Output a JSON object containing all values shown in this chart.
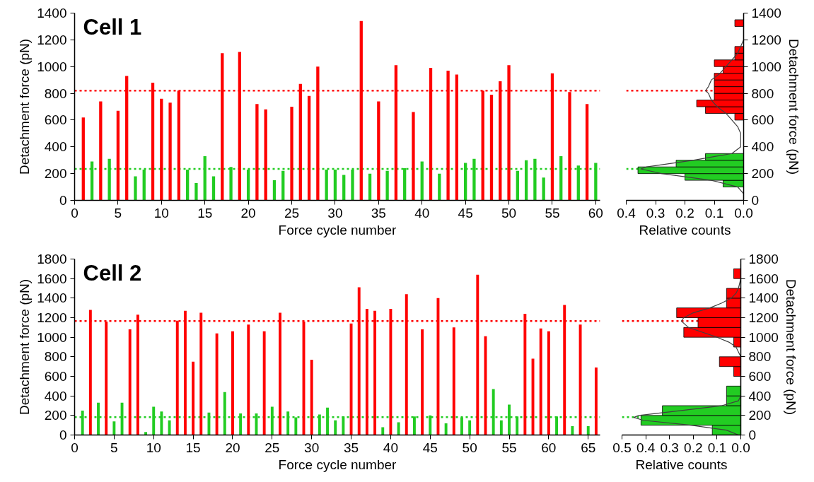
{
  "chart_data": [
    {
      "type": "bar",
      "title": "Cell 1",
      "xlabel": "Force cycle number",
      "ylabel": "Detachment force (pN)",
      "xlim": [
        0,
        60.5
      ],
      "xticks": [
        0,
        5,
        10,
        15,
        20,
        25,
        30,
        35,
        40,
        45,
        50,
        55,
        60
      ],
      "ylim": [
        0,
        1400
      ],
      "yticks": [
        0,
        200,
        400,
        600,
        800,
        1000,
        1200,
        1400
      ],
      "ref_lines": [
        {
          "axis": "y",
          "value": 820,
          "color": "#ff0000",
          "line_style": "dotted"
        },
        {
          "axis": "y",
          "value": 235,
          "color": "#22cc22",
          "line_style": "dotted"
        }
      ],
      "x": [
        1,
        2,
        3,
        4,
        5,
        6,
        7,
        8,
        9,
        10,
        11,
        12,
        13,
        14,
        15,
        16,
        17,
        18,
        19,
        20,
        21,
        22,
        23,
        24,
        25,
        26,
        27,
        28,
        29,
        30,
        31,
        32,
        33,
        34,
        35,
        36,
        37,
        38,
        39,
        40,
        41,
        42,
        43,
        44,
        45,
        46,
        47,
        48,
        49,
        50,
        51,
        52,
        53,
        54,
        55,
        56,
        57,
        58,
        59,
        60
      ],
      "series": [
        {
          "color": "#ff0000",
          "values": [
            620,
            null,
            740,
            null,
            670,
            930,
            null,
            null,
            880,
            760,
            730,
            820,
            null,
            null,
            null,
            null,
            1100,
            null,
            1110,
            null,
            720,
            680,
            null,
            null,
            700,
            870,
            780,
            1000,
            null,
            null,
            null,
            null,
            1340,
            null,
            740,
            null,
            1010,
            null,
            660,
            null,
            990,
            null,
            970,
            940,
            null,
            null,
            820,
            790,
            890,
            1010,
            null,
            null,
            null,
            null,
            950,
            null,
            810,
            null,
            720,
            null
          ]
        },
        {
          "color": "#22cc22",
          "values": [
            null,
            290,
            null,
            310,
            null,
            null,
            180,
            230,
            null,
            null,
            null,
            null,
            230,
            130,
            330,
            180,
            null,
            250,
            null,
            230,
            null,
            null,
            150,
            220,
            null,
            null,
            null,
            null,
            230,
            230,
            190,
            230,
            null,
            200,
            null,
            220,
            null,
            240,
            null,
            290,
            null,
            200,
            null,
            null,
            280,
            310,
            null,
            null,
            null,
            null,
            220,
            300,
            310,
            170,
            null,
            330,
            null,
            260,
            null,
            280
          ]
        }
      ]
    },
    {
      "type": "histogram",
      "orientation": "horizontal",
      "xlabel": "Relative counts",
      "ylabel": "Detachment force (pN)",
      "xlim": [
        0.4,
        0
      ],
      "xticks": [
        0.4,
        0.3,
        0.2,
        0.1,
        {
          "value": 0,
          "label": "0.0"
        }
      ],
      "ylim": [
        0,
        1400
      ],
      "yticks": [
        0,
        200,
        400,
        600,
        800,
        1000,
        1200,
        1400
      ],
      "ref_lines": [
        {
          "axis": "y",
          "value": 820,
          "color": "#ff0000",
          "line_style": "dotted"
        },
        {
          "axis": "y",
          "value": 235,
          "color": "#22cc22",
          "line_style": "dotted"
        }
      ],
      "series": [
        {
          "color": "#ff0000",
          "bins": [
            600,
            650,
            700,
            750,
            800,
            850,
            900,
            950,
            1000,
            1050,
            1100,
            1150,
            1200,
            1250,
            1300,
            1350
          ],
          "values": [
            0.03,
            0.13,
            0.16,
            0.1,
            0.1,
            0.1,
            0.1,
            0.07,
            0.1,
            0.03,
            0.03,
            0,
            0,
            0,
            0.03
          ]
        },
        {
          "color": "#22cc22",
          "bins": [
            100,
            150,
            200,
            250,
            300,
            350
          ],
          "values": [
            0.07,
            0.2,
            0.36,
            0.23,
            0.13
          ]
        },
        {
          "type": "line",
          "color": "#404040",
          "x": [
            0,
            50,
            100,
            150,
            200,
            235,
            250,
            300,
            350,
            400,
            450,
            500,
            550,
            600,
            650,
            700,
            750,
            800,
            820,
            850,
            900,
            950,
            1000,
            1050,
            1100,
            1150,
            1200,
            1300
          ],
          "values": [
            0,
            0,
            0.02,
            0.11,
            0.28,
            0.35,
            0.33,
            0.17,
            0.04,
            0.01,
            0.01,
            0.01,
            0.02,
            0.04,
            0.06,
            0.09,
            0.11,
            0.12,
            0.13,
            0.12,
            0.11,
            0.08,
            0.06,
            0.04,
            0.02,
            0.01,
            0,
            0
          ]
        }
      ]
    },
    {
      "type": "bar",
      "title": "Cell 2",
      "xlabel": "Force cycle number",
      "ylabel": "Detachment force (pN)",
      "xlim": [
        0,
        66.5
      ],
      "xticks": [
        0,
        5,
        10,
        15,
        20,
        25,
        30,
        35,
        40,
        45,
        50,
        55,
        60,
        65
      ],
      "ylim": [
        0,
        1800
      ],
      "yticks": [
        0,
        200,
        400,
        600,
        800,
        1000,
        1200,
        1400,
        1600,
        1800
      ],
      "ref_lines": [
        {
          "axis": "y",
          "value": 1165,
          "color": "#ff0000",
          "line_style": "dotted"
        },
        {
          "axis": "y",
          "value": 182,
          "color": "#22cc22",
          "line_style": "dotted"
        }
      ],
      "x": [
        1,
        2,
        3,
        4,
        5,
        6,
        7,
        8,
        9,
        10,
        11,
        12,
        13,
        14,
        15,
        16,
        17,
        18,
        19,
        20,
        21,
        22,
        23,
        24,
        25,
        26,
        27,
        28,
        29,
        30,
        31,
        32,
        33,
        34,
        35,
        36,
        37,
        38,
        39,
        40,
        41,
        42,
        43,
        44,
        45,
        46,
        47,
        48,
        49,
        50,
        51,
        52,
        53,
        54,
        55,
        56,
        57,
        58,
        59,
        60,
        61,
        62,
        63,
        64,
        65,
        66
      ],
      "series": [
        {
          "color": "#ff0000",
          "values": [
            null,
            1280,
            null,
            1160,
            null,
            null,
            1080,
            1230,
            null,
            null,
            null,
            null,
            1170,
            1270,
            750,
            1250,
            null,
            1040,
            null,
            1060,
            null,
            1130,
            null,
            1060,
            null,
            1250,
            null,
            null,
            1160,
            770,
            null,
            null,
            null,
            null,
            1140,
            1510,
            1290,
            1270,
            null,
            1290,
            null,
            1440,
            null,
            1080,
            null,
            1400,
            null,
            1100,
            null,
            null,
            1640,
            1010,
            null,
            null,
            null,
            null,
            1240,
            780,
            1090,
            1060,
            null,
            1330,
            null,
            1130,
            null,
            690
          ]
        },
        {
          "color": "#22cc22",
          "values": [
            250,
            null,
            330,
            null,
            140,
            330,
            null,
            null,
            30,
            290,
            240,
            150,
            null,
            null,
            null,
            null,
            230,
            null,
            440,
            null,
            220,
            null,
            220,
            null,
            290,
            null,
            240,
            180,
            null,
            null,
            210,
            280,
            150,
            190,
            null,
            null,
            null,
            null,
            80,
            null,
            130,
            null,
            190,
            null,
            200,
            null,
            120,
            null,
            180,
            150,
            null,
            null,
            470,
            150,
            310,
            190,
            null,
            null,
            null,
            null,
            190,
            null,
            90,
            null,
            90,
            null
          ]
        }
      ]
    },
    {
      "type": "histogram",
      "orientation": "horizontal",
      "xlabel": "Relative counts",
      "ylabel": "Detachment force (pN)",
      "xlim": [
        0.5,
        0
      ],
      "xticks": [
        0.5,
        0.4,
        0.3,
        0.2,
        0.1,
        {
          "value": 0,
          "label": "0.0"
        }
      ],
      "ylim": [
        0,
        1800
      ],
      "yticks": [
        0,
        200,
        400,
        600,
        800,
        1000,
        1200,
        1400,
        1600,
        1800
      ],
      "ref_lines": [
        {
          "axis": "y",
          "value": 1165,
          "color": "#ff0000",
          "line_style": "dotted"
        },
        {
          "axis": "y",
          "value": 182,
          "color": "#22cc22",
          "line_style": "dotted"
        }
      ],
      "series": [
        {
          "color": "#ff0000",
          "bins": [
            600,
            700,
            800,
            900,
            1000,
            1100,
            1200,
            1300,
            1400,
            1500,
            1600,
            1700
          ],
          "values": [
            0.03,
            0.09,
            0,
            0.03,
            0.24,
            0.18,
            0.27,
            0.06,
            0.06,
            0,
            0.03
          ]
        },
        {
          "color": "#22cc22",
          "bins": [
            0,
            100,
            200,
            300,
            400,
            500
          ],
          "values": [
            0.12,
            0.42,
            0.33,
            0.06,
            0.06
          ]
        },
        {
          "type": "line",
          "color": "#404040",
          "x": [
            0,
            50,
            100,
            150,
            180,
            200,
            250,
            300,
            350,
            400,
            800,
            850,
            900,
            950,
            1000,
            1050,
            1100,
            1165,
            1200,
            1250,
            1300,
            1350,
            1400,
            1450,
            1500,
            1600,
            1750
          ],
          "values": [
            0.01,
            0.06,
            0.21,
            0.41,
            0.45,
            0.43,
            0.25,
            0.08,
            0.01,
            0,
            0,
            0.01,
            0.02,
            0.05,
            0.1,
            0.16,
            0.22,
            0.25,
            0.24,
            0.2,
            0.13,
            0.08,
            0.04,
            0.02,
            0.01,
            0,
            0
          ]
        }
      ]
    }
  ]
}
